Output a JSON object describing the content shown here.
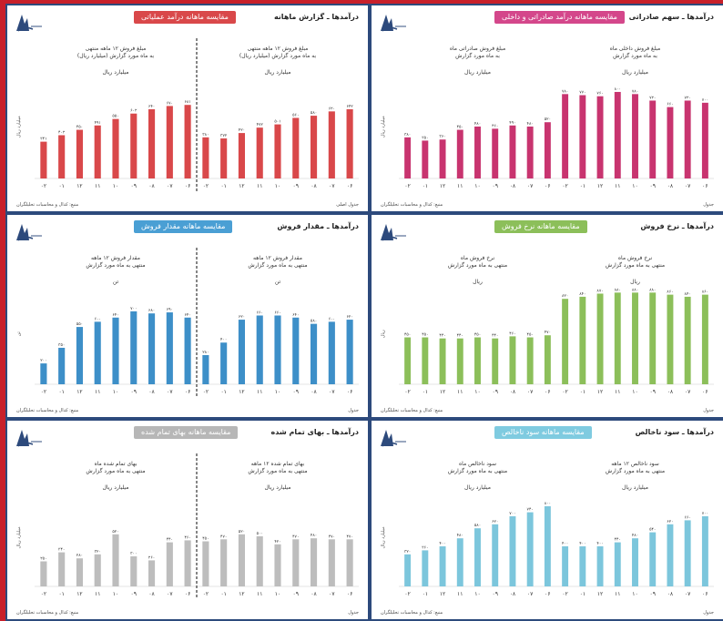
{
  "panels": [
    {
      "id": "p1",
      "heading": "درآمد‌ها ـ گزارش ماهانه",
      "pill": "مقایسه ماهانه درآمد عملیاتی",
      "pill_color": "#d9484a",
      "bar_color": "#d9484a",
      "left_caption": [
        "مبلغ فروش ۱۲ ماهه منتهی",
        "به ماه مورد گزارش (میلیارد ریال)"
      ],
      "left_unit": "میلیارد ریال",
      "right_caption": [
        "مبلغ فروش ۱۲ ماهه منتهی",
        "به ماه مورد گزارش (میلیارد ریال)"
      ],
      "right_unit": "میلیارد ریال",
      "axis_label": "میلیارد ریال",
      "footer_left": "منبع: کدال و محاسبات تحلیلگران",
      "footer_right": "جدول اصلی",
      "divider": true,
      "left": [
        34,
        40,
        45,
        49,
        55,
        60,
        64,
        67,
        68
      ],
      "right": [
        38,
        37,
        42,
        47,
        50,
        56,
        58,
        62,
        64
      ],
      "left_labels": [
        "۳۴۱",
        "۴۰۲",
        "۴۵۰",
        "۴۹۱",
        "۵۵۰",
        "۶۰۲",
        "۶۴۰",
        "۶۷۰",
        "۶۸۱"
      ],
      "right_labels": [
        "۳۸۰",
        "۳۷۲",
        "۴۲۰",
        "۴۷۲",
        "۵۰۱",
        "۵۶۰",
        "۵۸۰",
        "۶۲۰",
        "۶۴۲"
      ],
      "ticks": [
        "۰۲",
        "۰۱",
        "۱۲",
        "۱۱",
        "۱۰",
        "۰۹",
        "۰۸",
        "۰۷",
        "۰۶"
      ]
    },
    {
      "id": "p2",
      "heading": "درآمد‌ها ـ سهم صادراتی",
      "pill": "مقایسه ماهانه درآمد صادراتی و داخلی",
      "pill_color": "#d4478b",
      "bar_color": "#c8346f",
      "left_caption": [
        "مبلغ فروش صادراتی ماه",
        "به ماه مورد گزارش"
      ],
      "left_unit": "میلیارد ریال",
      "right_caption": [
        "مبلغ فروش داخلی ماه",
        "به ماه مورد گزارش"
      ],
      "right_unit": "میلیارد ریال",
      "axis_label": "میلیارد ریال",
      "footer_left": "منبع: کدال و محاسبات تحلیلگران",
      "footer_right": "جدول",
      "divider": false,
      "left": [
        38,
        35,
        36,
        45,
        48,
        46,
        49,
        48,
        52
      ],
      "right": [
        78,
        77,
        76,
        80,
        78,
        72,
        66,
        72,
        70
      ],
      "left_labels": [
        "۳۸۰",
        "۳۵۰",
        "۳۶۰",
        "۴۵۰",
        "۴۸۰",
        "۴۶۰",
        "۴۹۰",
        "۴۸۰",
        "۵۲۰"
      ],
      "right_labels": [
        "۷۸۰",
        "۷۷۰",
        "۷۶۰",
        "۸۰۰",
        "۷۸۰",
        "۷۲۰",
        "۶۶۰",
        "۷۲۰",
        "۷۰۰"
      ],
      "ticks": [
        "۰۲",
        "۰۱",
        "۱۲",
        "۱۱",
        "۱۰",
        "۰۹",
        "۰۸",
        "۰۷",
        "۰۶"
      ]
    },
    {
      "id": "p3",
      "heading": "درآمد‌ها ـ مقدار فروش",
      "pill": "مقایسه ماهانه مقدار فروش",
      "pill_color": "#4a9fd4",
      "bar_color": "#3d8fc8",
      "left_caption": [
        "مقدار فروش ۱۲ ماهه",
        "منتهی به ماه مورد گزارش"
      ],
      "left_unit": "تن",
      "right_caption": [
        "مقدار فروش ۱۲ ماهه",
        "منتهی به ماه مورد گزارش"
      ],
      "right_unit": "تن",
      "axis_label": "تن",
      "footer_left": "منبع: کدال و محاسبات تحلیلگران",
      "footer_right": "جدول",
      "divider": true,
      "left": [
        20,
        35,
        55,
        60,
        64,
        70,
        68,
        69,
        64
      ],
      "right": [
        28,
        40,
        62,
        66,
        66,
        64,
        58,
        60,
        62
      ],
      "left_labels": [
        "۲۰۰",
        "۳۵۰",
        "۵۵۰",
        "۶۰۰",
        "۶۴۰",
        "۷۰۰",
        "۶۸۰",
        "۶۹۰",
        "۶۴۰"
      ],
      "right_labels": [
        "۲۸۰",
        "۴۰۰",
        "۶۲۰",
        "۶۶۰",
        "۶۶۰",
        "۶۴۰",
        "۵۸۰",
        "۶۰۰",
        "۶۲۰"
      ],
      "ticks": [
        "۰۲",
        "۰۱",
        "۱۲",
        "۱۱",
        "۱۰",
        "۰۹",
        "۰۸",
        "۰۷",
        "۰۶"
      ]
    },
    {
      "id": "p4",
      "heading": "درآمد‌ها ـ نرخ فروش",
      "pill": "مقایسه ماهانه نرخ فروش",
      "pill_color": "#8cbf5a",
      "bar_color": "#8cbf5a",
      "left_caption": [
        "نرخ فروش ماه",
        "منتهی به ماه مورد گزارش"
      ],
      "left_unit": "ریال",
      "right_caption": [
        "نرخ فروش ماه",
        "منتهی به ماه مورد گزارش"
      ],
      "right_unit": "ریال",
      "axis_label": "ریال",
      "footer_left": "منبع: کدال و محاسبات تحلیلگران",
      "footer_right": "جدول",
      "divider": false,
      "left": [
        45,
        45,
        44,
        44,
        45,
        44,
        46,
        45,
        47
      ],
      "right": [
        82,
        84,
        87,
        88,
        88,
        88,
        86,
        84,
        86
      ],
      "left_labels": [
        "۴۵۰",
        "۴۵۰",
        "۴۴۰",
        "۴۴۰",
        "۴۵۰",
        "۴۴۰",
        "۴۶۰",
        "۴۵۰",
        "۴۷۰"
      ],
      "right_labels": [
        "۸۲۰",
        "۸۴۰",
        "۸۷۰",
        "۸۸۰",
        "۸۸۰",
        "۸۸۰",
        "۸۶۰",
        "۸۴۰",
        "۸۶۰"
      ],
      "ticks": [
        "۰۲",
        "۰۱",
        "۱۲",
        "۱۱",
        "۱۰",
        "۰۹",
        "۰۸",
        "۰۷",
        "۰۶"
      ]
    },
    {
      "id": "p5",
      "heading": "درآمد‌ها ـ بهای تمام شده",
      "pill": "مقایسه ماهانه بهای تمام شده",
      "pill_color": "#b7b7b7",
      "bar_color": "#bdbdbd",
      "left_caption": [
        "بهای تمام شده ماه",
        "منتهی به ماه مورد گزارش"
      ],
      "left_unit": "میلیارد ریال",
      "right_caption": [
        "بهای تمام شده ۱۲ ماهه",
        "منتهی به ماه مورد گزارش"
      ],
      "right_unit": "میلیارد ریال",
      "axis_label": "میلیارد ریال",
      "footer_left": "منبع: کدال و محاسبات تحلیلگران",
      "footer_right": "جدول",
      "divider": true,
      "left": [
        25,
        34,
        28,
        32,
        52,
        30,
        26,
        44,
        46
      ],
      "right": [
        45,
        47,
        52,
        50,
        42,
        47,
        48,
        47,
        47
      ],
      "left_labels": [
        "۲۵۰",
        "۳۴۰",
        "۲۸۰",
        "۳۲۰",
        "۵۲۰",
        "۳۰۰",
        "۲۶۰",
        "۴۴۰",
        "۴۶۰"
      ],
      "right_labels": [
        "۴۵۰",
        "۴۷۰",
        "۵۲۰",
        "۵۰۰",
        "۴۲۰",
        "۴۷۰",
        "۴۸۰",
        "۴۷۰",
        "۴۷۰"
      ],
      "ticks": [
        "۰۲",
        "۰۱",
        "۱۲",
        "۱۱",
        "۱۰",
        "۰۹",
        "۰۸",
        "۰۷",
        "۰۶"
      ]
    },
    {
      "id": "p6",
      "heading": "درآمد‌ها ـ سود ناخالص",
      "pill": "مقایسه ماهانه سود ناخالص",
      "pill_color": "#7fcbe0",
      "bar_color": "#7cc6dc",
      "left_caption": [
        "سود ناخالص ماه",
        "منتهی به ماه مورد گزارش"
      ],
      "left_unit": "میلیارد ریال",
      "right_caption": [
        "سود ناخالص ۱۲ ماهه",
        "منتهی به ماه مورد گزارش"
      ],
      "right_unit": "میلیارد ریال",
      "axis_label": "میلیارد ریال",
      "footer_left": "منبع: کدال و محاسبات تحلیلگران",
      "footer_right": "جدول",
      "divider": false,
      "left": [
        32,
        36,
        40,
        48,
        58,
        62,
        70,
        74,
        80
      ],
      "right": [
        40,
        40,
        40,
        44,
        48,
        54,
        62,
        66,
        70
      ],
      "left_labels": [
        "۳۲۰",
        "۳۶۰",
        "۴۰۰",
        "۴۸۰",
        "۵۸۰",
        "۶۲۰",
        "۷۰۰",
        "۷۴۰",
        "۸۰۰"
      ],
      "right_labels": [
        "۴۰۰",
        "۴۰۰",
        "۴۰۰",
        "۴۴۰",
        "۴۸۰",
        "۵۴۰",
        "۶۲۰",
        "۶۶۰",
        "۷۰۰"
      ],
      "ticks": [
        "۰۲",
        "۰۱",
        "۱۲",
        "۱۱",
        "۱۰",
        "۰۹",
        "۰۸",
        "۰۷",
        "۰۶"
      ]
    }
  ],
  "chart_data": [
    {
      "type": "bar",
      "categories": [
        "۰۲",
        "۰۱",
        "۱۲",
        "۱۱",
        "۱۰",
        "۰۹",
        "۰۸",
        "۰۷",
        "۰۶"
      ],
      "series": [
        {
          "values": [
            34,
            40,
            45,
            49,
            55,
            60,
            64,
            67,
            68
          ]
        },
        {
          "values": [
            38,
            37,
            42,
            47,
            50,
            56,
            58,
            62,
            64
          ]
        }
      ]
    },
    {
      "type": "bar",
      "categories": [
        "۰۲",
        "۰۱",
        "۱۲",
        "۱۱",
        "۱۰",
        "۰۹",
        "۰۸",
        "۰۷",
        "۰۶"
      ],
      "series": [
        {
          "values": [
            38,
            35,
            36,
            45,
            48,
            46,
            49,
            48,
            52
          ]
        },
        {
          "values": [
            78,
            77,
            76,
            80,
            78,
            72,
            66,
            72,
            70
          ]
        }
      ]
    },
    {
      "type": "bar",
      "categories": [
        "۰۲",
        "۰۱",
        "۱۲",
        "۱۱",
        "۱۰",
        "۰۹",
        "۰۸",
        "۰۷",
        "۰۶"
      ],
      "series": [
        {
          "values": [
            20,
            35,
            55,
            60,
            64,
            70,
            68,
            69,
            64
          ]
        },
        {
          "values": [
            28,
            40,
            62,
            66,
            66,
            64,
            58,
            60,
            62
          ]
        }
      ]
    },
    {
      "type": "bar",
      "categories": [
        "۰۲",
        "۰۱",
        "۱۲",
        "۱۱",
        "۱۰",
        "۰۹",
        "۰۸",
        "۰۷",
        "۰۶"
      ],
      "series": [
        {
          "values": [
            45,
            45,
            44,
            44,
            45,
            44,
            46,
            45,
            47
          ]
        },
        {
          "values": [
            82,
            84,
            87,
            88,
            88,
            88,
            86,
            84,
            86
          ]
        }
      ]
    },
    {
      "type": "bar",
      "categories": [
        "۰۲",
        "۰۱",
        "۱۲",
        "۱۱",
        "۱۰",
        "۰۹",
        "۰۸",
        "۰۷",
        "۰۶"
      ],
      "series": [
        {
          "values": [
            25,
            34,
            28,
            32,
            52,
            30,
            26,
            44,
            46
          ]
        },
        {
          "values": [
            45,
            47,
            52,
            50,
            42,
            47,
            48,
            47,
            47
          ]
        }
      ]
    },
    {
      "type": "bar",
      "categories": [
        "۰۲",
        "۰۱",
        "۱۲",
        "۱۱",
        "۱۰",
        "۰۹",
        "۰۸",
        "۰۷",
        "۰۶"
      ],
      "series": [
        {
          "values": [
            32,
            36,
            40,
            48,
            58,
            62,
            70,
            74,
            80
          ]
        },
        {
          "values": [
            40,
            40,
            40,
            44,
            48,
            54,
            62,
            66,
            70
          ]
        }
      ]
    }
  ]
}
